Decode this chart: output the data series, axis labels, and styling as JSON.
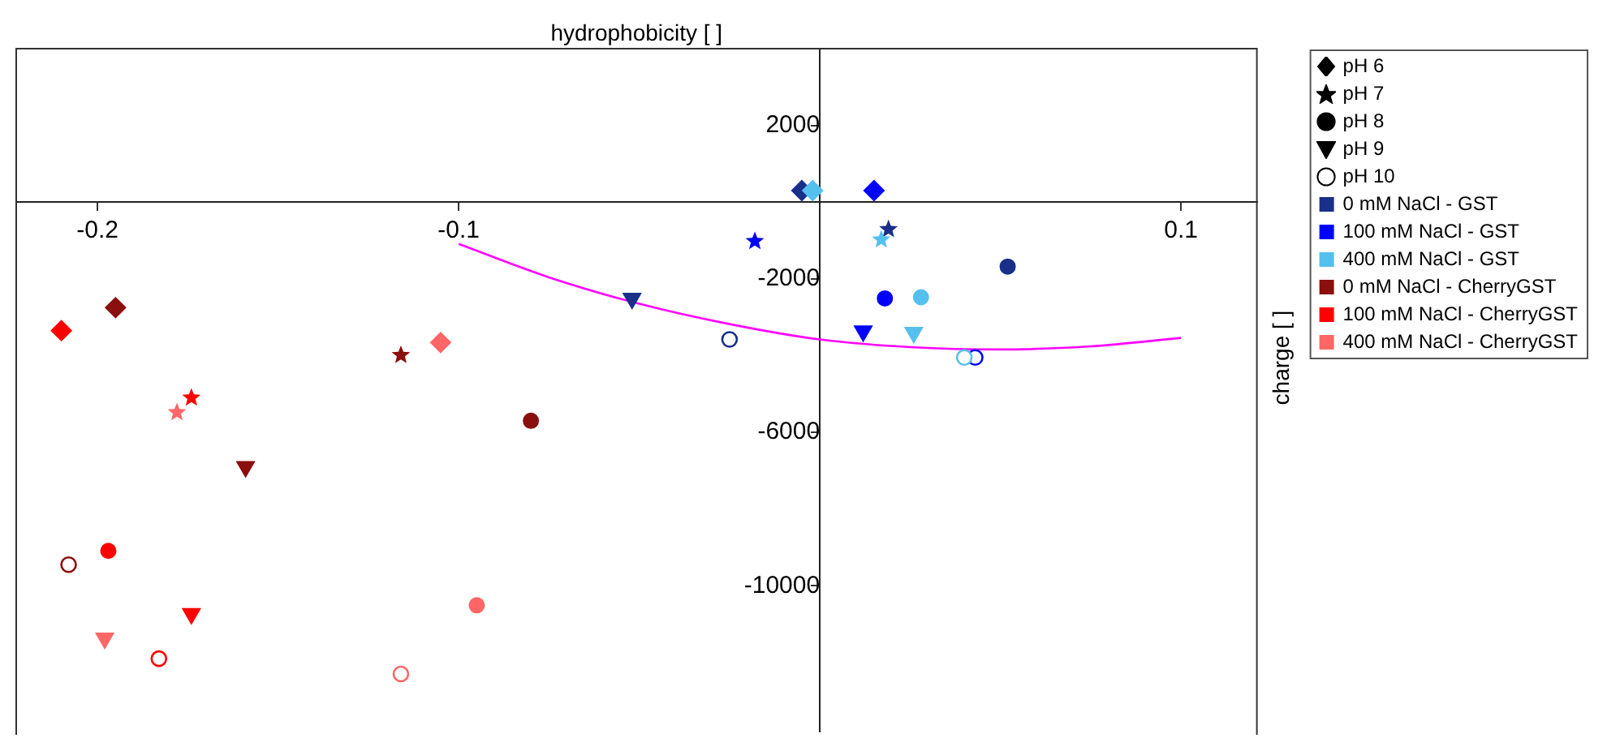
{
  "chart_data": {
    "type": "scatter",
    "xlabel": "hydrophobicity [ ]",
    "ylabel": "charge [ ]",
    "xlim": [
      -0.2225,
      0.121
    ],
    "ylim": [
      -13800,
      4000
    ],
    "xticks": [
      -0.2,
      -0.1,
      0.1
    ],
    "yticks": [
      2000,
      -2000,
      -6000,
      -10000
    ],
    "grid": false,
    "legend": "right",
    "series": [
      {
        "name": "pH 6",
        "color": "#000000",
        "marker": "diamond",
        "x": [
          -0.005,
          0.015,
          -0.002,
          -0.195,
          -0.21,
          -0.105
        ],
        "values": [
          300,
          300,
          300,
          -2750,
          -3350,
          -3660
        ],
        "colors": [
          "#1a2f8a",
          "#0000ff",
          "#55c0ee",
          "#8b0f0f",
          "#ff0000",
          "#ff6666"
        ]
      },
      {
        "name": "pH 7",
        "color": "#000000",
        "marker": "star",
        "x": [
          0.019,
          -0.018,
          0.017,
          -0.116,
          -0.174,
          -0.178
        ],
        "values": [
          -710,
          -1020,
          -980,
          -3990,
          -5100,
          -5480
        ],
        "colors": [
          "#1a2f8a",
          "#0000ff",
          "#55c0ee",
          "#8b0f0f",
          "#ff0000",
          "#ff6666"
        ]
      },
      {
        "name": "pH 8",
        "color": "#000000",
        "marker": "circle",
        "x": [
          0.052,
          0.018,
          0.028,
          -0.08,
          -0.197,
          -0.095
        ],
        "values": [
          -1680,
          -2510,
          -2480,
          -5700,
          -9090,
          -10510
        ],
        "colors": [
          "#1a2f8a",
          "#0000ff",
          "#55c0ee",
          "#8b0f0f",
          "#ff0000",
          "#ff6666"
        ]
      },
      {
        "name": "pH 9",
        "color": "#000000",
        "marker": "triangle",
        "x": [
          -0.052,
          0.012,
          0.026,
          -0.159,
          -0.174,
          -0.198
        ],
        "values": [
          -2510,
          -3360,
          -3400,
          -6900,
          -10730,
          -11370
        ],
        "colors": [
          "#1a2f8a",
          "#0000ff",
          "#55c0ee",
          "#8b0f0f",
          "#ff0000",
          "#ff6666"
        ]
      },
      {
        "name": "pH 10",
        "color": "#ffffff",
        "marker": "circle",
        "x": [
          -0.025,
          0.043,
          0.04,
          -0.208,
          -0.183,
          -0.116
        ],
        "values": [
          -3580,
          -4050,
          -4050,
          -9450,
          -11900,
          -12300
        ],
        "colors": [
          "#1a2f8a",
          "#0000ff",
          "#55c0ee",
          "#8b0f0f",
          "#ff0000",
          "#ff6666"
        ]
      },
      {
        "name": "0 mM NaCl - GST",
        "color": "#1a2f8a",
        "marker": "square"
      },
      {
        "name": "100 mM NaCl - GST",
        "color": "#0000ff",
        "marker": "square"
      },
      {
        "name": "400 mM NaCl - GST",
        "color": "#55c0ee",
        "marker": "square"
      },
      {
        "name": "0 mM NaCl - CherryGST",
        "color": "#8b0f0f",
        "marker": "square"
      },
      {
        "name": "100 mM NaCl - CherryGST",
        "color": "#ff0000",
        "marker": "square"
      },
      {
        "name": "400 mM NaCl - CherryGST",
        "color": "#ff6666",
        "marker": "square"
      },
      {
        "type": "line",
        "color": "#ff00ff",
        "marker": "none",
        "x": [
          -0.1,
          -0.075,
          -0.05,
          -0.025,
          0,
          0.025,
          0.05,
          0.075,
          0.1
        ],
        "values": [
          -1090,
          -1960,
          -2650,
          -3180,
          -3580,
          -3780,
          -3840,
          -3760,
          -3540
        ]
      }
    ]
  }
}
